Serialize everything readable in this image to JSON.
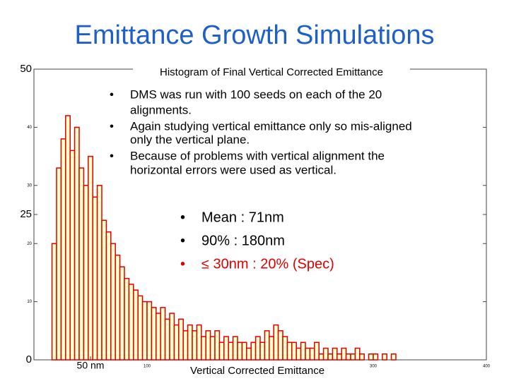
{
  "slide": {
    "title": "Emittance Growth Simulations",
    "bullets": [
      "DMS was run with 100 seeds on each of the 20",
      "alignments.",
      "Again studying vertical emittance only so mis-aligned",
      "only the vertical plane.",
      "Because of problems with vertical alignment the",
      "horizontal errors were used as vertical."
    ],
    "stats": [
      "Mean : 71nm",
      "90% : 180nm",
      "≤ 30nm : 20% (Spec)"
    ],
    "bullet_mark": "•"
  },
  "chart_data": {
    "type": "histogram",
    "title": "Histogram of Final Vertical Corrected Emittance",
    "x_label": "Vertical Corrected Emittance",
    "bins": [
      16,
      20,
      24,
      28,
      32,
      36,
      40,
      44,
      48,
      52,
      56,
      60,
      64,
      68,
      72,
      76,
      80,
      84,
      88,
      92,
      96,
      100,
      104,
      108,
      112,
      116,
      120,
      124,
      128,
      132,
      136,
      140,
      144,
      148,
      152,
      156,
      160,
      164,
      168,
      172,
      176,
      180,
      184,
      188,
      192,
      196,
      200,
      204,
      208,
      212,
      216,
      220,
      224,
      228,
      232,
      236,
      240,
      244,
      248,
      252,
      256,
      260,
      264,
      268,
      272,
      276,
      280,
      284,
      288,
      292,
      296,
      300,
      304,
      308,
      312,
      316,
      320
    ],
    "values": [
      20,
      33,
      38,
      42,
      36,
      40,
      33,
      30,
      35,
      28,
      30,
      24,
      22,
      20,
      18,
      16,
      14,
      13,
      12,
      11,
      10,
      10,
      9,
      8,
      9,
      7,
      8,
      6,
      7,
      5,
      6,
      5,
      6,
      4,
      5,
      4,
      5,
      3,
      4,
      3,
      4,
      3,
      3,
      2,
      3,
      4,
      3,
      5,
      4,
      6,
      5,
      4,
      3,
      3,
      2,
      3,
      2,
      2,
      3,
      1,
      2,
      1,
      2,
      1,
      2,
      1,
      1,
      2,
      1,
      0,
      1,
      1,
      0,
      1,
      0,
      1
    ],
    "color": "#e00000",
    "fill": "#ffffcc",
    "xlim": [
      0,
      400
    ],
    "xticks": [
      {
        "value": 50,
        "label": "50 nm"
      },
      100,
      300,
      400
    ],
    "ylim": [
      0,
      50
    ],
    "yticks": [
      0,
      10,
      20,
      25,
      30,
      40,
      50
    ]
  }
}
